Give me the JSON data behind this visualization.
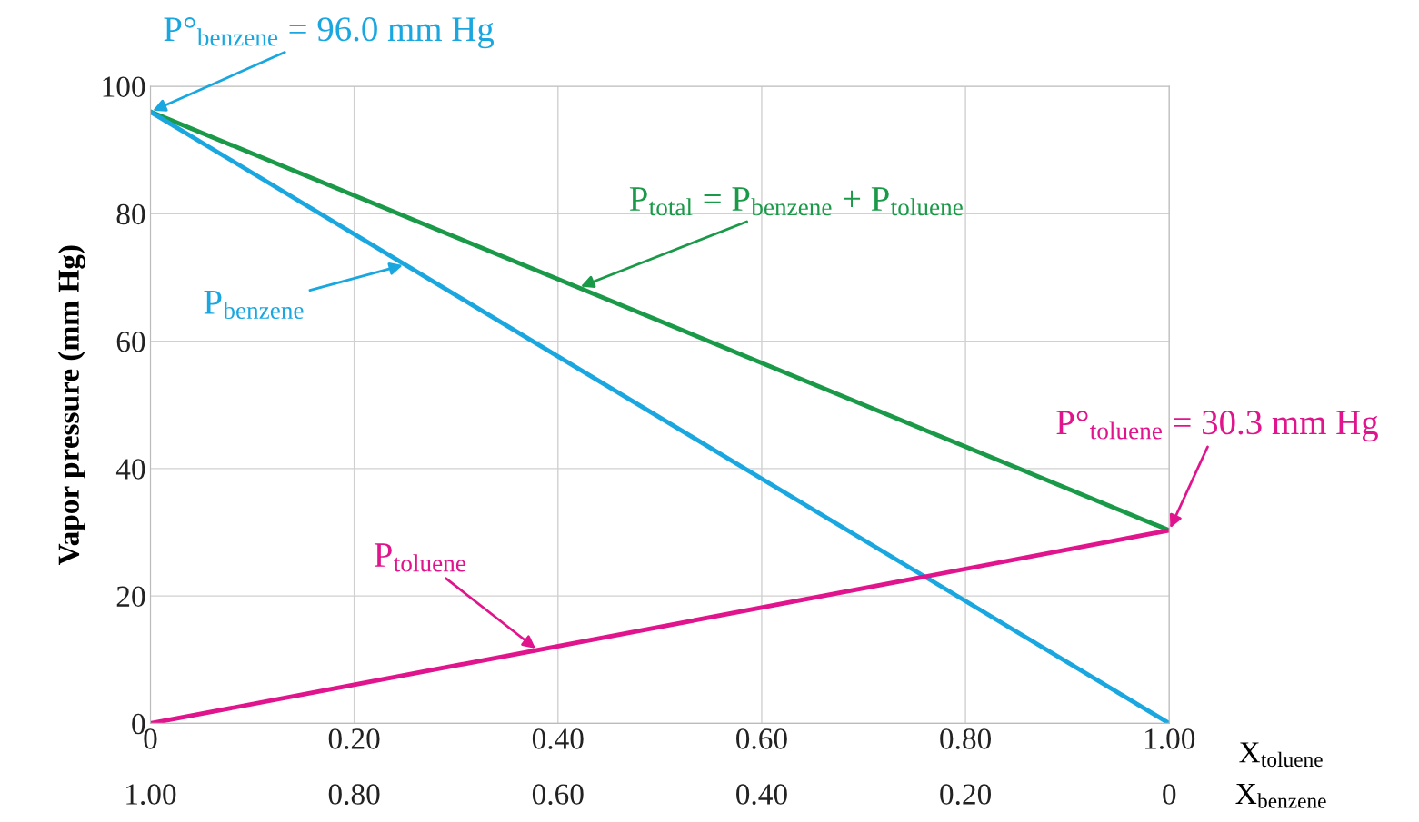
{
  "chart_data": {
    "type": "line",
    "ylabel": "Vapor pressure (mm Hg)",
    "xlabel": "X$_{toluene}$",
    "x2label": "X$_{benzene}$",
    "x": [
      0,
      1
    ],
    "series": [
      {
        "name": "P$_{total}$ = P$_{benzene}$ + P$_{toluene}$",
        "color": "#1a9a48",
        "values": [
          96.0,
          30.3
        ]
      },
      {
        "name": "P$_{benzene}$",
        "color": "#1aa7e0",
        "values": [
          96.0,
          0
        ]
      },
      {
        "name": "P$_{toluene}$",
        "color": "#e0148c",
        "values": [
          0,
          30.3
        ]
      }
    ],
    "xlim": [
      0,
      1
    ],
    "xticks": [
      0,
      {
        "value": 0.2,
        "label": "0.20"
      },
      {
        "value": 0.4,
        "label": "0.40"
      },
      {
        "value": 0.6,
        "label": "0.60"
      },
      {
        "value": 0.8,
        "label": "0.80"
      },
      {
        "value": 1,
        "label": "1.00"
      }
    ],
    "x2lim": [
      1,
      0
    ],
    "x2ticks": [
      {
        "value": 1,
        "label": "1.00"
      },
      {
        "value": 0.8,
        "label": "0.80"
      },
      {
        "value": 0.6,
        "label": "0.60"
      },
      {
        "value": 0.4,
        "label": "0.40"
      },
      {
        "value": 0.2,
        "label": "0.20"
      },
      0
    ],
    "ylim": [
      0,
      100
    ],
    "yticks": [
      0,
      20,
      40,
      60,
      80,
      100
    ],
    "grid": true,
    "marker": "none",
    "line_style": "solid",
    "annotations": [
      {
        "text": "P°$_{benzene}$ = 96.0 mm Hg",
        "x": 0,
        "y": 96.0
      },
      {
        "text": "P°$_{toluene}$ = 30.3 mm Hg",
        "x": 1,
        "y": 30.3
      }
    ]
  }
}
